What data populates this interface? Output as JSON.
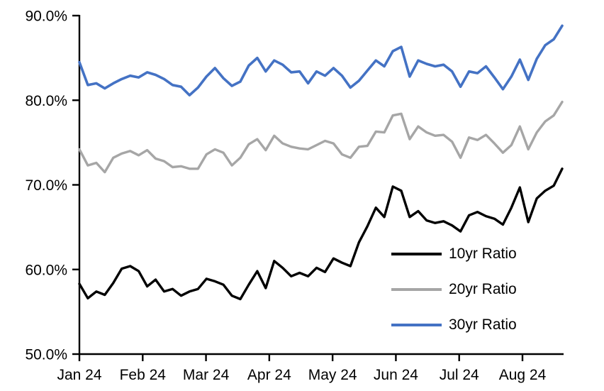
{
  "figure": {
    "background": "#ffffff",
    "text_color": "#000000"
  },
  "chart_data": {
    "type": "line",
    "title": "",
    "xlabel": "",
    "ylabel": "",
    "grid": false,
    "ylim": [
      50,
      90
    ],
    "y_tick_values": [
      90,
      80,
      70,
      60,
      50
    ],
    "y_tick_labels": [
      "90.0%",
      "80.0%",
      "70.0%",
      "60.0%",
      "50.0%"
    ],
    "x_tick_labels": [
      "Jan 24",
      "Feb 24",
      "Mar 24",
      "Apr 24",
      "May 24",
      "Jun 24",
      "Jul 24",
      "Aug 24"
    ],
    "legend": {
      "position": "inside-lower-right",
      "entries": [
        {
          "label": "10yr Ratio",
          "color": "#000000"
        },
        {
          "label": "20yr Ratio",
          "color": "#A6A6A6"
        },
        {
          "label": "30yr Ratio",
          "color": "#4472C4"
        }
      ]
    },
    "series": [
      {
        "name": "10yr Ratio",
        "color": "#000000",
        "width": 3.4,
        "values": [
          58.3,
          56.6,
          57.4,
          57.0,
          58.4,
          60.1,
          60.4,
          59.8,
          58.0,
          58.8,
          57.4,
          57.7,
          56.9,
          57.4,
          57.7,
          58.9,
          58.6,
          58.2,
          56.9,
          56.5,
          58.2,
          59.8,
          57.8,
          61.0,
          60.2,
          59.2,
          59.6,
          59.2,
          60.2,
          59.7,
          61.3,
          60.8,
          60.4,
          63.2,
          65.1,
          67.3,
          66.2,
          69.8,
          69.3,
          66.2,
          66.9,
          65.8,
          65.5,
          65.7,
          65.2,
          64.5,
          66.4,
          66.8,
          66.3,
          66.0,
          65.3,
          67.3,
          69.7,
          65.6,
          68.4,
          69.3,
          69.9,
          71.9
        ]
      },
      {
        "name": "20yr Ratio",
        "color": "#A6A6A6",
        "width": 3.4,
        "values": [
          74.2,
          72.3,
          72.6,
          71.5,
          73.2,
          73.7,
          74.0,
          73.5,
          74.1,
          73.1,
          72.8,
          72.1,
          72.2,
          71.9,
          71.9,
          73.6,
          74.2,
          73.8,
          72.3,
          73.2,
          74.8,
          75.4,
          74.1,
          75.8,
          74.9,
          74.5,
          74.3,
          74.2,
          74.7,
          75.2,
          74.9,
          73.6,
          73.2,
          74.5,
          74.6,
          76.3,
          76.2,
          78.2,
          78.4,
          75.4,
          76.9,
          76.2,
          75.8,
          75.9,
          75.1,
          73.2,
          75.6,
          75.3,
          75.9,
          74.9,
          73.8,
          74.7,
          76.9,
          74.2,
          76.2,
          77.5,
          78.2,
          79.8
        ]
      },
      {
        "name": "30yr Ratio",
        "color": "#4472C4",
        "width": 3.6,
        "values": [
          84.5,
          81.8,
          82.0,
          81.4,
          82.0,
          82.5,
          82.9,
          82.7,
          83.3,
          83.0,
          82.5,
          81.8,
          81.6,
          80.6,
          81.5,
          82.8,
          83.8,
          82.6,
          81.7,
          82.2,
          84.1,
          85.0,
          83.4,
          84.7,
          84.2,
          83.3,
          83.4,
          82.0,
          83.4,
          82.9,
          83.8,
          82.9,
          81.5,
          82.3,
          83.5,
          84.7,
          84.0,
          85.8,
          86.3,
          82.8,
          84.7,
          84.3,
          84.0,
          84.2,
          83.4,
          81.6,
          83.4,
          83.2,
          84.0,
          82.7,
          81.3,
          82.8,
          84.8,
          82.4,
          84.9,
          86.5,
          87.2,
          88.8
        ]
      }
    ]
  }
}
